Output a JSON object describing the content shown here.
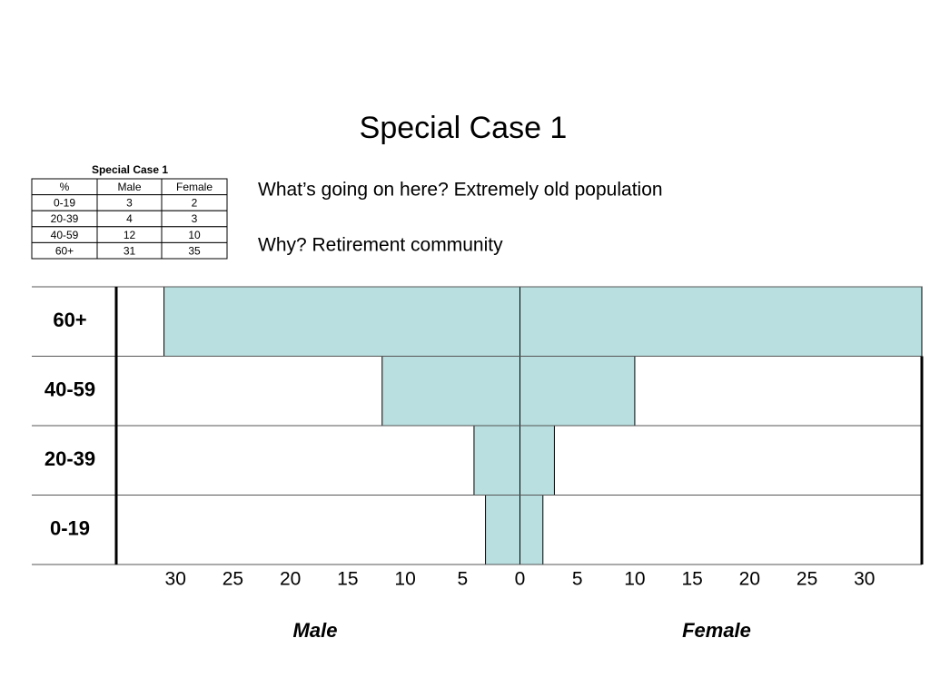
{
  "title": "Special Case 1",
  "table": {
    "title": "Special Case 1",
    "header": [
      "%",
      "Male",
      "Female"
    ],
    "rows": [
      [
        "0-19",
        "3",
        "2"
      ],
      [
        "20-39",
        "4",
        "3"
      ],
      [
        "40-59",
        "12",
        "10"
      ],
      [
        "60+",
        "31",
        "35"
      ]
    ]
  },
  "notes": [
    "What’s going on here?  Extremely old population",
    "Why?  Retirement community"
  ],
  "chart_data": {
    "type": "pyramid",
    "categories": [
      "60+",
      "40-59",
      "20-39",
      "0-19"
    ],
    "series": [
      {
        "name": "Male",
        "color": "#b9dfe0",
        "values": [
          31,
          12,
          4,
          3
        ]
      },
      {
        "name": "Female",
        "color": "#b9dfe0",
        "values": [
          35,
          10,
          3,
          2
        ]
      }
    ],
    "xlim": [
      -35,
      35
    ],
    "xticks": [
      {
        "value": -30,
        "label": "30"
      },
      {
        "value": -25,
        "label": "25"
      },
      {
        "value": -20,
        "label": "20"
      },
      {
        "value": -15,
        "label": "15"
      },
      {
        "value": -10,
        "label": "10"
      },
      {
        "value": -5,
        "label": "5"
      },
      0,
      5,
      10,
      15,
      20,
      25,
      30
    ]
  }
}
